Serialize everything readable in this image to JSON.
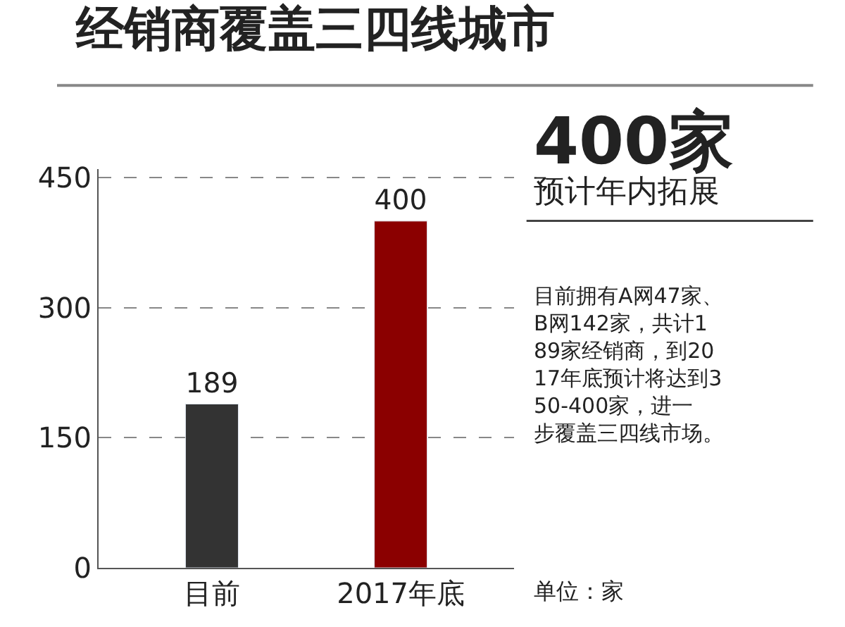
{
  "chart_data": {
    "type": "bar",
    "title": "经销商覆盖三四线城市",
    "categories": [
      "目前",
      "2017年底"
    ],
    "values": [
      189,
      400
    ],
    "colors": [
      "#333333",
      "#8b0000"
    ],
    "ylim": [
      0,
      460
    ],
    "yticks": [
      0,
      150,
      300,
      450
    ],
    "grid": "y",
    "data_labels": true,
    "legend": false,
    "annotations": [
      "400家",
      "预计年内拓展",
      "目前拥有A网47家、B网142家，共计189家经销商，到2017年底预计将达到350-400家，进一步覆盖三四线市场。",
      "单位：家"
    ]
  }
}
